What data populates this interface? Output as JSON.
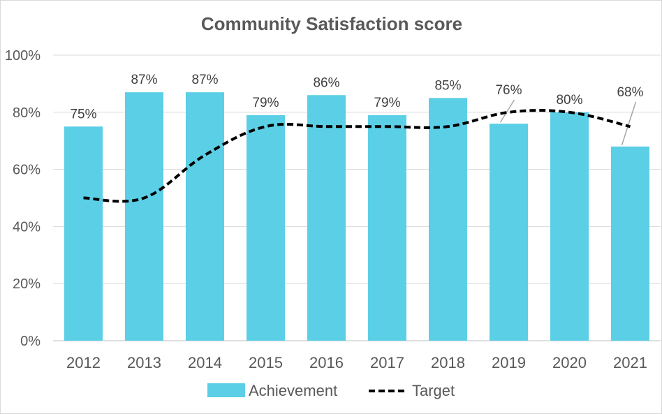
{
  "chart_data": {
    "type": "bar",
    "title": "Community Satisfaction score",
    "xlabel": "",
    "ylabel": "",
    "categories": [
      "2012",
      "2013",
      "2014",
      "2015",
      "2016",
      "2017",
      "2018",
      "2019",
      "2020",
      "2021"
    ],
    "ylim": [
      0,
      100
    ],
    "yticks": [
      0,
      20,
      40,
      60,
      80,
      100
    ],
    "ytick_labels": [
      "0%",
      "20%",
      "40%",
      "60%",
      "80%",
      "100%"
    ],
    "grid": true,
    "legend_position": "bottom",
    "series": [
      {
        "name": "Achievement",
        "kind": "bar",
        "color": "#5bcfe6",
        "values": [
          75,
          87,
          87,
          79,
          86,
          79,
          85,
          76,
          80,
          68
        ],
        "labels": [
          "75%",
          "87%",
          "87%",
          "79%",
          "86%",
          "79%",
          "85%",
          "76%",
          "80%",
          "68%"
        ]
      },
      {
        "name": "Target",
        "kind": "line",
        "style": "dashed",
        "color": "#000000",
        "values": [
          50,
          50,
          65,
          75,
          75,
          75,
          75,
          80,
          80,
          75
        ]
      }
    ]
  }
}
